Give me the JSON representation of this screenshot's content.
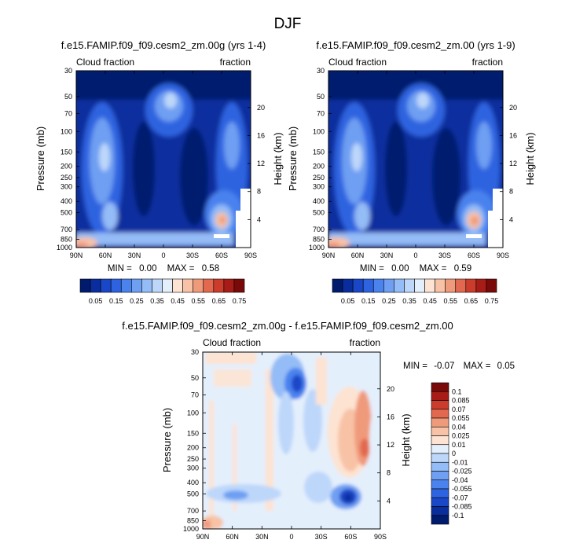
{
  "figure_title": "DJF",
  "colors": {
    "seq_scale": [
      "#001a6e",
      "#0a2d9e",
      "#1a47c8",
      "#2d63e0",
      "#4a82ee",
      "#6e9ff2",
      "#94bcf6",
      "#bdd7fa",
      "#e4effc",
      "#fde3d2",
      "#f8c2a6",
      "#f09a7c",
      "#e2694f",
      "#cc3c2c",
      "#a81c17",
      "#7a0a0a"
    ],
    "div_scale": [
      "#001a6e",
      "#0a2d9e",
      "#1a47c8",
      "#2d63e0",
      "#4a82ee",
      "#6e9ff2",
      "#94bcf6",
      "#bdd7fa",
      "#e4effc",
      "#fde3d2",
      "#f8c2a6",
      "#f09a7c",
      "#e2694f",
      "#cc3c2c",
      "#a81c17",
      "#7a0a0a"
    ]
  },
  "chart_data": [
    {
      "type": "heatmap",
      "title": "f.e15.FAMIP.f09_f09.cesm2_zm.00g (yrs 1-4)",
      "left_label": "Cloud fraction",
      "right_label": "fraction",
      "xlabel": "",
      "ylabel": "Pressure (mb)",
      "y2label": "Height (km)",
      "x_ticks": [
        "90N",
        "60N",
        "30N",
        "0",
        "30S",
        "60S",
        "90S"
      ],
      "y_ticks": [
        "1000",
        "850",
        "700",
        "500",
        "400",
        "300",
        "250",
        "200",
        "150",
        "100",
        "70",
        "50",
        "30"
      ],
      "y2_ticks": [
        "4",
        "8",
        "12",
        "16",
        "20"
      ],
      "xlim": [
        90,
        -90
      ],
      "ylim": [
        1000,
        30
      ],
      "y_scale": "log",
      "min_label": "MIN =",
      "min_value": "0.00",
      "max_label": "MAX =",
      "max_value": "0.58",
      "colorbar_labels": [
        "0.05",
        "0.15",
        "0.25",
        "0.35",
        "0.45",
        "0.55",
        "0.65",
        "0.75"
      ]
    },
    {
      "type": "heatmap",
      "title": "f.e15.FAMIP.f09_f09.cesm2_zm.00 (yrs 1-9)",
      "left_label": "Cloud fraction",
      "right_label": "fraction",
      "xlabel": "",
      "ylabel": "Pressure (mb)",
      "y2label": "Height (km)",
      "x_ticks": [
        "90N",
        "60N",
        "30N",
        "0",
        "30S",
        "60S",
        "90S"
      ],
      "y_ticks": [
        "1000",
        "850",
        "700",
        "500",
        "400",
        "300",
        "250",
        "200",
        "150",
        "100",
        "70",
        "50",
        "30"
      ],
      "y2_ticks": [
        "4",
        "8",
        "12",
        "16",
        "20"
      ],
      "xlim": [
        90,
        -90
      ],
      "ylim": [
        1000,
        30
      ],
      "y_scale": "log",
      "min_label": "MIN =",
      "min_value": "0.00",
      "max_label": "MAX =",
      "max_value": "0.59",
      "colorbar_labels": [
        "0.05",
        "0.15",
        "0.25",
        "0.35",
        "0.45",
        "0.55",
        "0.65",
        "0.75"
      ]
    },
    {
      "type": "heatmap",
      "title": "f.e15.FAMIP.f09_f09.cesm2_zm.00g - f.e15.FAMIP.f09_f09.cesm2_zm.00",
      "left_label": "Cloud fraction",
      "right_label": "fraction",
      "xlabel": "",
      "ylabel": "Pressure (mb)",
      "y2label": "Height (km)",
      "x_ticks": [
        "90N",
        "60N",
        "30N",
        "0",
        "30S",
        "60S",
        "90S"
      ],
      "y_ticks": [
        "1000",
        "850",
        "700",
        "500",
        "400",
        "300",
        "250",
        "200",
        "150",
        "100",
        "70",
        "50",
        "30"
      ],
      "y2_ticks": [
        "4",
        "8",
        "12",
        "16",
        "20"
      ],
      "xlim": [
        90,
        -90
      ],
      "ylim": [
        1000,
        30
      ],
      "y_scale": "log",
      "min_label": "MIN =",
      "min_value": "-0.07",
      "max_label": "MAX =",
      "max_value": "0.05",
      "colorbar_labels": [
        "0.1",
        "0.085",
        "0.07",
        "0.055",
        "0.04",
        "0.025",
        "0.01",
        "0",
        "-0.01",
        "-0.025",
        "-0.04",
        "-0.055",
        "-0.07",
        "-0.085",
        "-0.1"
      ]
    }
  ]
}
